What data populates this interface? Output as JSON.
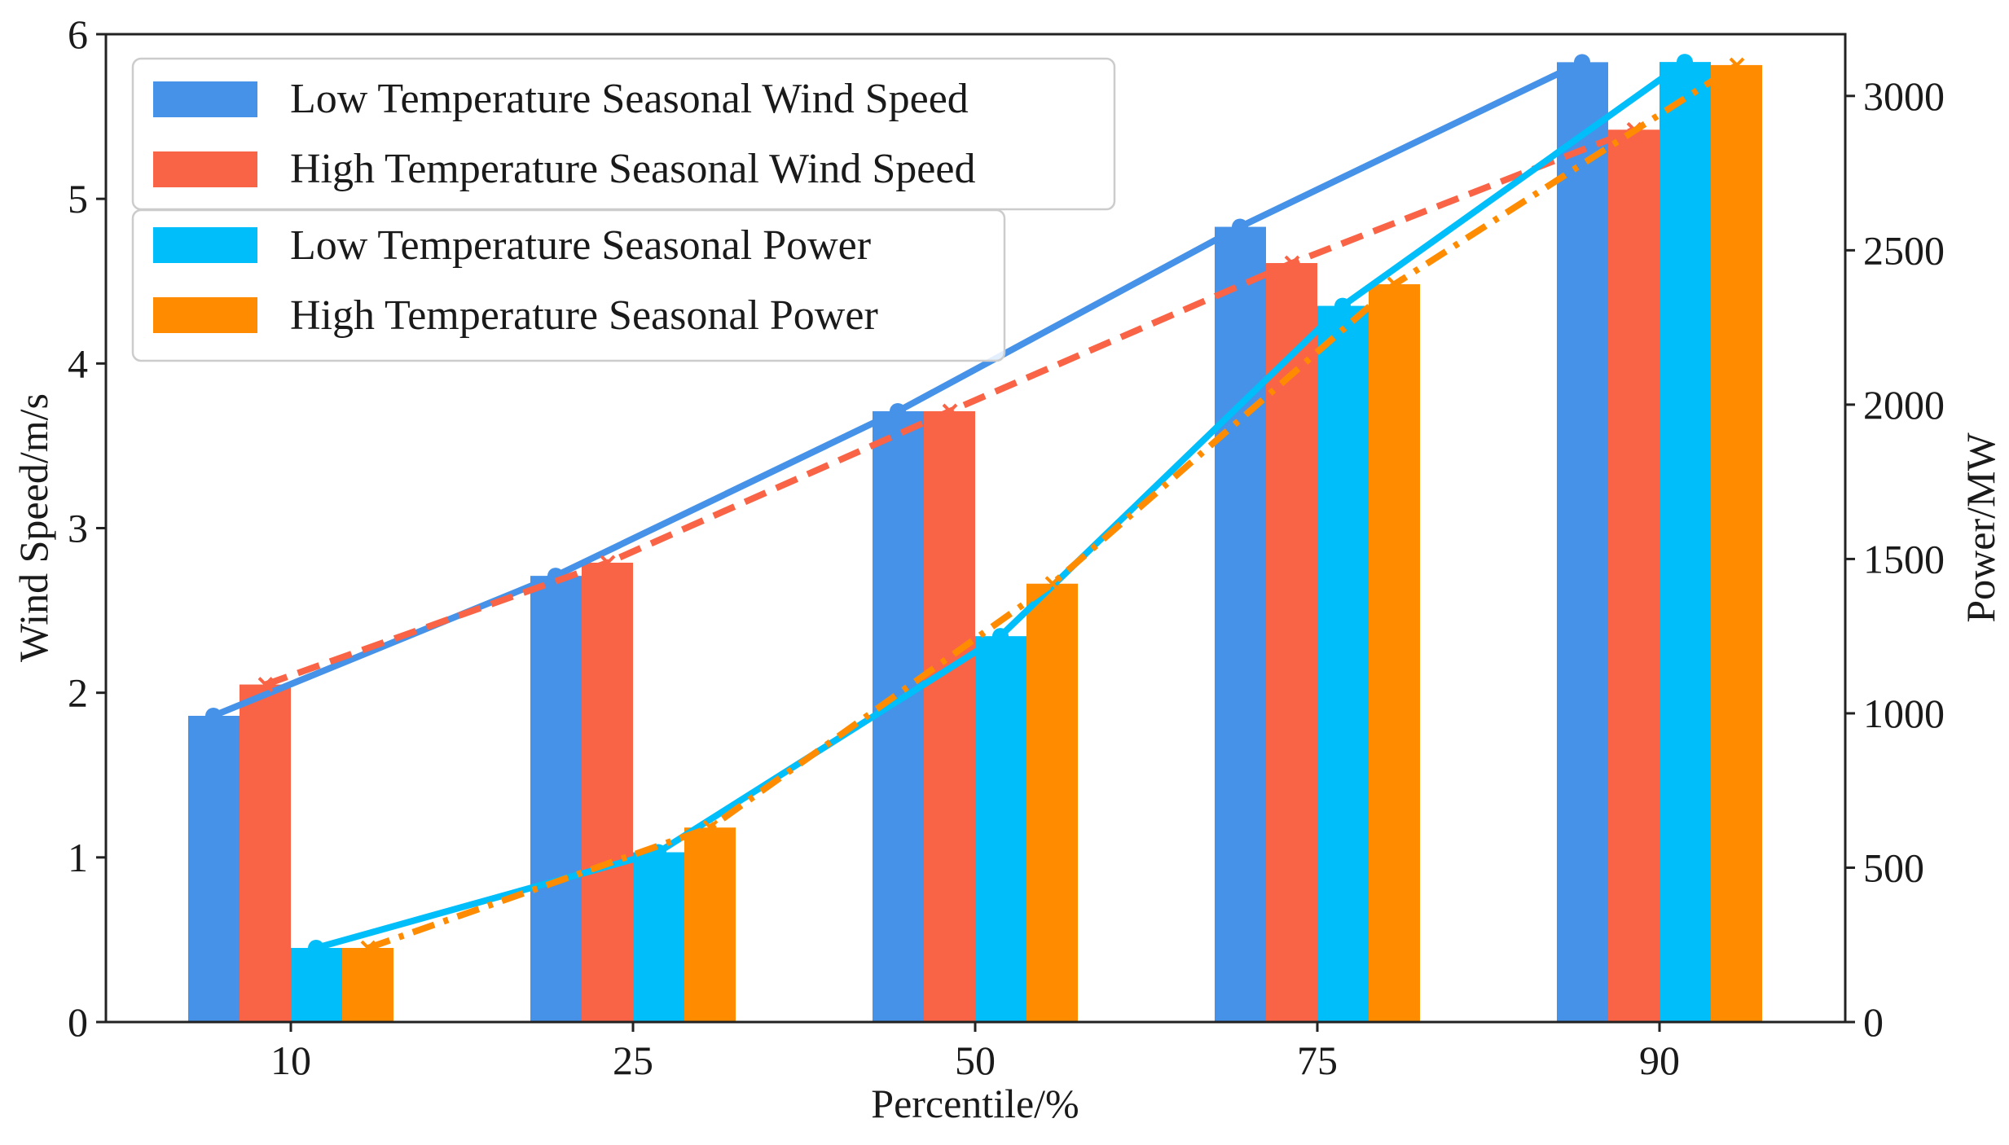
{
  "chart_data": {
    "type": "bar",
    "title": "",
    "xlabel": "Percentile/%",
    "ylabel_left": "Wind Speed/m/s",
    "ylabel_right": "Power/MW",
    "categories": [
      "10",
      "25",
      "50",
      "75",
      "90"
    ],
    "ylim_left": [
      0,
      6
    ],
    "ylim_right": [
      0,
      3200
    ],
    "yticks_left": [
      "0",
      "1",
      "2",
      "3",
      "4",
      "5",
      "6"
    ],
    "yticks_right": [
      "0",
      "500",
      "1000",
      "1500",
      "2000",
      "2500",
      "3000"
    ],
    "grid": false,
    "legend_placement": "top-left",
    "series": [
      {
        "name": "Low Temperature Seasonal Wind Speed",
        "axis": "left",
        "color": "#4592e8",
        "line_style": "solid",
        "marker": "circle",
        "values": [
          1.86,
          2.71,
          3.71,
          4.83,
          5.83
        ]
      },
      {
        "name": "High Temperature Seasonal Wind Speed",
        "axis": "left",
        "color": "#fa6446",
        "line_style": "dashed",
        "marker": "x",
        "values": [
          2.05,
          2.79,
          3.71,
          4.61,
          5.42
        ]
      },
      {
        "name": "Low Temperature Seasonal Power",
        "axis": "right",
        "color": "#00befa",
        "line_style": "solid",
        "marker": "circle",
        "values": [
          240,
          550,
          1250,
          2320,
          3110
        ]
      },
      {
        "name": "High Temperature Seasonal Power",
        "axis": "right",
        "color": "#ff8c00",
        "line_style": "dashdot",
        "marker": "x",
        "values": [
          240,
          630,
          1420,
          2390,
          3100
        ]
      }
    ]
  }
}
